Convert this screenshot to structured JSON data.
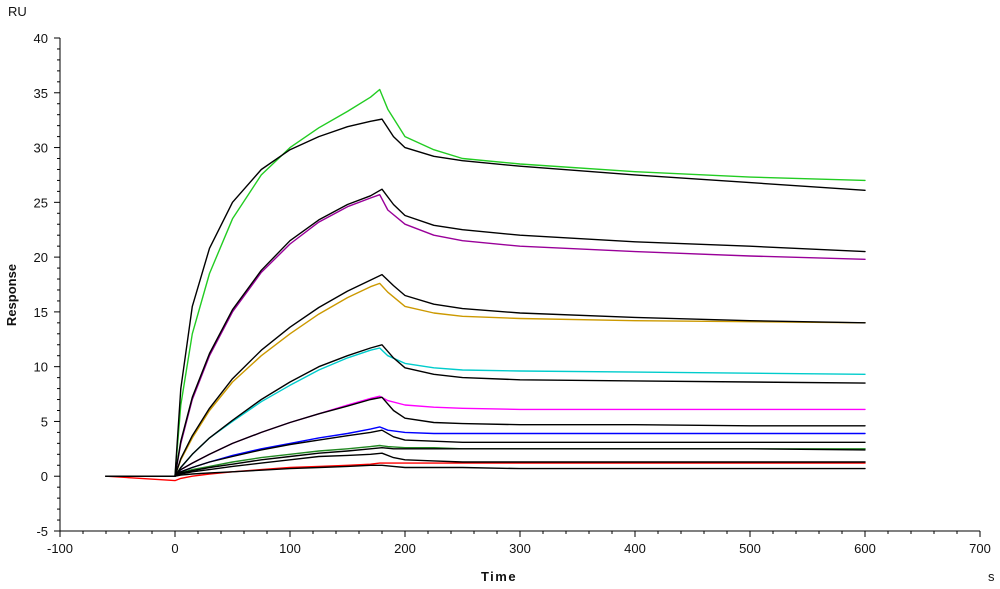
{
  "chart_data": {
    "type": "line",
    "title": "",
    "xlabel": "Time",
    "ylabel": "Response",
    "x_unit": "s",
    "y_unit": "RU",
    "xlim": [
      -100,
      700
    ],
    "ylim": [
      -5,
      40
    ],
    "x_ticks": [
      -100,
      0,
      100,
      200,
      300,
      400,
      500,
      600,
      700
    ],
    "y_ticks": [
      -5,
      0,
      5,
      10,
      15,
      20,
      25,
      30,
      35,
      40
    ],
    "grid": false,
    "legend": "none",
    "series": [
      {
        "color": "#22cc22",
        "kind": "measured",
        "x": [
          -60,
          0,
          5,
          15,
          30,
          50,
          75,
          100,
          125,
          150,
          170,
          178,
          185,
          200,
          225,
          250,
          300,
          400,
          500,
          600
        ],
        "y": [
          0,
          0,
          6.5,
          13,
          18.5,
          23.5,
          27.5,
          30,
          31.8,
          33.3,
          34.6,
          35.3,
          33.5,
          31,
          29.8,
          29,
          28.5,
          27.8,
          27.3,
          27
        ]
      },
      {
        "color": "#000000",
        "kind": "fit",
        "x": [
          -60,
          0,
          5,
          15,
          30,
          50,
          75,
          100,
          125,
          150,
          170,
          180,
          190,
          200,
          225,
          250,
          300,
          400,
          500,
          600
        ],
        "y": [
          0,
          0,
          8,
          15.5,
          20.8,
          25,
          28,
          29.8,
          31,
          31.9,
          32.4,
          32.6,
          31,
          30,
          29.2,
          28.8,
          28.3,
          27.5,
          26.8,
          26.1
        ]
      },
      {
        "color": "#990099",
        "kind": "measured",
        "x": [
          -60,
          0,
          5,
          15,
          30,
          50,
          75,
          100,
          125,
          150,
          170,
          178,
          185,
          200,
          225,
          250,
          300,
          400,
          500,
          600
        ],
        "y": [
          0,
          0,
          3,
          7,
          11,
          15,
          18.6,
          21.2,
          23.2,
          24.6,
          25.4,
          25.7,
          24.3,
          23,
          22,
          21.5,
          21,
          20.5,
          20.1,
          19.8
        ]
      },
      {
        "color": "#000000",
        "kind": "fit",
        "x": [
          -60,
          0,
          5,
          15,
          30,
          50,
          75,
          100,
          125,
          150,
          170,
          180,
          190,
          200,
          225,
          250,
          300,
          400,
          500,
          600
        ],
        "y": [
          0,
          0,
          3.2,
          7.2,
          11.2,
          15.2,
          18.8,
          21.5,
          23.4,
          24.8,
          25.6,
          26.2,
          24.8,
          23.8,
          22.9,
          22.5,
          22,
          21.4,
          21,
          20.5
        ]
      },
      {
        "color": "#cc9900",
        "kind": "measured",
        "x": [
          -60,
          0,
          5,
          15,
          30,
          50,
          75,
          100,
          125,
          150,
          170,
          178,
          185,
          200,
          225,
          250,
          300,
          400,
          500,
          600
        ],
        "y": [
          0,
          0,
          1.5,
          3.5,
          6,
          8.6,
          11,
          13,
          14.8,
          16.3,
          17.3,
          17.6,
          16.8,
          15.5,
          14.9,
          14.6,
          14.4,
          14.2,
          14.1,
          14
        ]
      },
      {
        "color": "#000000",
        "kind": "fit",
        "x": [
          -60,
          0,
          5,
          15,
          30,
          50,
          75,
          100,
          125,
          150,
          170,
          180,
          190,
          200,
          225,
          250,
          300,
          400,
          500,
          600
        ],
        "y": [
          0,
          0,
          1.6,
          3.7,
          6.2,
          8.9,
          11.5,
          13.6,
          15.4,
          16.9,
          17.9,
          18.4,
          17.4,
          16.5,
          15.7,
          15.3,
          14.9,
          14.5,
          14.2,
          14
        ]
      },
      {
        "color": "#00cccc",
        "kind": "measured",
        "x": [
          -60,
          0,
          5,
          15,
          30,
          50,
          75,
          100,
          125,
          150,
          170,
          178,
          185,
          200,
          225,
          250,
          300,
          400,
          500,
          600
        ],
        "y": [
          0,
          0,
          0.8,
          2,
          3.5,
          5,
          6.8,
          8.3,
          9.7,
          10.8,
          11.5,
          11.7,
          11,
          10.3,
          9.9,
          9.7,
          9.6,
          9.5,
          9.4,
          9.3
        ]
      },
      {
        "color": "#000000",
        "kind": "fit",
        "x": [
          -60,
          0,
          5,
          15,
          30,
          50,
          75,
          100,
          125,
          150,
          170,
          180,
          190,
          200,
          225,
          250,
          300,
          400,
          500,
          600
        ],
        "y": [
          0,
          0,
          0.8,
          2,
          3.5,
          5.1,
          7,
          8.6,
          10,
          11,
          11.7,
          12,
          10.8,
          9.9,
          9.3,
          9,
          8.8,
          8.7,
          8.6,
          8.5
        ]
      },
      {
        "color": "#ff00ff",
        "kind": "measured",
        "x": [
          -60,
          0,
          5,
          15,
          30,
          50,
          75,
          100,
          125,
          150,
          170,
          178,
          185,
          200,
          225,
          250,
          300,
          400,
          500,
          600
        ],
        "y": [
          0,
          0,
          0.6,
          1.2,
          2,
          3,
          4,
          4.9,
          5.7,
          6.5,
          7.1,
          7.3,
          6.9,
          6.5,
          6.3,
          6.2,
          6.1,
          6.1,
          6.1,
          6.1
        ]
      },
      {
        "color": "#000000",
        "kind": "fit",
        "x": [
          -60,
          0,
          5,
          15,
          30,
          50,
          75,
          100,
          125,
          150,
          170,
          180,
          190,
          200,
          225,
          250,
          300,
          400,
          500,
          600
        ],
        "y": [
          0,
          0,
          0.6,
          1.2,
          2,
          3,
          4,
          4.9,
          5.7,
          6.4,
          7,
          7.2,
          6,
          5.3,
          4.9,
          4.8,
          4.7,
          4.7,
          4.6,
          4.6
        ]
      },
      {
        "color": "#0000ff",
        "kind": "measured",
        "x": [
          -60,
          0,
          5,
          15,
          30,
          50,
          75,
          100,
          125,
          150,
          170,
          178,
          185,
          200,
          225,
          250,
          300,
          400,
          500,
          600
        ],
        "y": [
          0,
          0,
          0.4,
          0.8,
          1.3,
          1.9,
          2.5,
          3,
          3.5,
          3.9,
          4.3,
          4.5,
          4.2,
          4,
          3.9,
          3.9,
          3.9,
          3.9,
          3.9,
          3.9
        ]
      },
      {
        "color": "#000000",
        "kind": "fit",
        "x": [
          -60,
          0,
          5,
          15,
          30,
          50,
          75,
          100,
          125,
          150,
          170,
          180,
          190,
          200,
          225,
          250,
          300,
          400,
          500,
          600
        ],
        "y": [
          0,
          0,
          0.4,
          0.8,
          1.3,
          1.8,
          2.4,
          2.9,
          3.3,
          3.7,
          4,
          4.2,
          3.6,
          3.3,
          3.2,
          3.1,
          3.1,
          3.1,
          3.1,
          3.1
        ]
      },
      {
        "color": "#228822",
        "kind": "measured",
        "x": [
          -60,
          0,
          5,
          15,
          30,
          50,
          75,
          100,
          125,
          150,
          170,
          178,
          185,
          200,
          225,
          250,
          300,
          400,
          500,
          600
        ],
        "y": [
          0,
          0,
          0.3,
          0.6,
          0.9,
          1.3,
          1.7,
          2,
          2.3,
          2.5,
          2.7,
          2.8,
          2.7,
          2.6,
          2.6,
          2.5,
          2.5,
          2.5,
          2.5,
          2.5
        ]
      },
      {
        "color": "#000000",
        "kind": "fit",
        "x": [
          -60,
          0,
          5,
          15,
          30,
          50,
          75,
          100,
          125,
          150,
          170,
          180,
          190,
          200,
          225,
          250,
          300,
          400,
          500,
          600
        ],
        "y": [
          0,
          0,
          0.3,
          0.5,
          0.8,
          1.1,
          1.5,
          1.8,
          2.1,
          2.3,
          2.5,
          2.6,
          2.5,
          2.5,
          2.5,
          2.5,
          2.5,
          2.5,
          2.5,
          2.4
        ]
      },
      {
        "color": "#ff0000",
        "kind": "measured",
        "x": [
          -60,
          0,
          5,
          15,
          30,
          50,
          75,
          100,
          125,
          150,
          170,
          178,
          185,
          200,
          225,
          250,
          300,
          400,
          500,
          600
        ],
        "y": [
          0,
          -0.4,
          -0.2,
          0,
          0.2,
          0.4,
          0.6,
          0.8,
          0.9,
          1,
          1.1,
          1.2,
          1.2,
          1.2,
          1.2,
          1.2,
          1.2,
          1.2,
          1.2,
          1.2
        ]
      },
      {
        "color": "#000000",
        "kind": "fit",
        "x": [
          -60,
          0,
          5,
          15,
          30,
          50,
          75,
          100,
          125,
          150,
          170,
          180,
          190,
          200,
          225,
          250,
          300,
          400,
          500,
          600
        ],
        "y": [
          0,
          0,
          0.2,
          0.4,
          0.6,
          0.9,
          1.2,
          1.5,
          1.8,
          1.9,
          2,
          2.1,
          1.7,
          1.5,
          1.4,
          1.3,
          1.3,
          1.3,
          1.3,
          1.3
        ]
      },
      {
        "color": "#000000",
        "kind": "fit",
        "x": [
          -60,
          0,
          5,
          15,
          30,
          50,
          75,
          100,
          125,
          150,
          170,
          180,
          190,
          200,
          225,
          250,
          300,
          400,
          500,
          600
        ],
        "y": [
          0,
          0,
          0.1,
          0.2,
          0.3,
          0.4,
          0.55,
          0.7,
          0.8,
          0.9,
          1,
          1,
          0.9,
          0.8,
          0.8,
          0.8,
          0.7,
          0.7,
          0.7,
          0.7
        ]
      }
    ]
  }
}
